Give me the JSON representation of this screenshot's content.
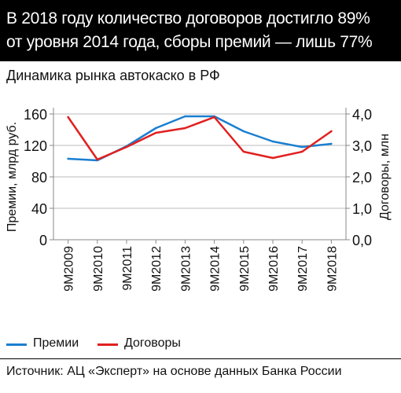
{
  "headline": {
    "line1": "В 2018 году количество договоров достигло 89%",
    "line2": "от уровня 2014 года, сборы премий — лишь 77%"
  },
  "subtitle": "Динамика рынка автокаско в РФ",
  "source": "Источник: АЦ «Эксперт» на основе данных Банка России",
  "colors": {
    "premiums": "#1a7fd0",
    "contracts": "#e0201f",
    "grid": "#bbbbbb",
    "axis": "#888888",
    "headline_bg": "#000000"
  },
  "chart_data": {
    "type": "line",
    "categories": [
      "9M2009",
      "9M2010",
      "9M2011",
      "9M2012",
      "9M2013",
      "9M2014",
      "9M2015",
      "9M2016",
      "9M2017",
      "9M2018"
    ],
    "series": [
      {
        "name": "Премии",
        "axis": "left",
        "color": "#1a7fd0",
        "values": [
          103,
          101,
          119,
          142,
          157,
          157,
          138,
          125,
          118,
          122
        ]
      },
      {
        "name": "Договоры",
        "axis": "right",
        "color": "#e0201f",
        "values": [
          3.9,
          2.55,
          2.95,
          3.4,
          3.55,
          3.9,
          2.8,
          2.6,
          2.8,
          3.45
        ]
      }
    ],
    "ylabel": "Премии, млрд руб.",
    "y2label": "Договоры, млн",
    "ylim": [
      0,
      160
    ],
    "y2lim": [
      0,
      4
    ],
    "yticks": [
      "0",
      "40",
      "80",
      "120",
      "160"
    ],
    "y2ticks": [
      "0,0",
      "1,0",
      "2,0",
      "3,0",
      "4,0"
    ],
    "grid": true,
    "legend_position": "bottom-left"
  }
}
